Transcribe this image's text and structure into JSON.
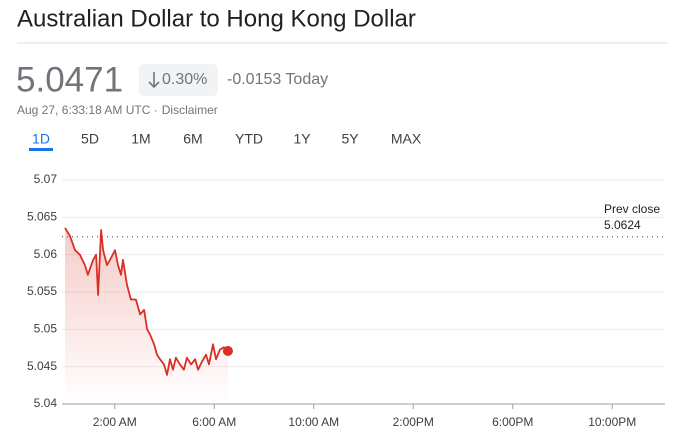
{
  "header": {
    "title": "Australian Dollar to Hong Kong Dollar",
    "price": "5.0471",
    "change_percent": "0.30%",
    "change": "-0.0153 Today",
    "timestamp": "Aug 27, 6:33:18 AM UTC ·",
    "disclaimer": "Disclaimer"
  },
  "tabs": [
    "1D",
    "5D",
    "1M",
    "6M",
    "YTD",
    "1Y",
    "5Y",
    "MAX"
  ],
  "chart_data": {
    "type": "line",
    "color": "#d93025",
    "x": [
      0,
      0.2,
      0.4,
      0.6,
      0.8,
      0.92,
      1.13,
      1.25,
      1.33,
      1.45,
      1.53,
      1.69,
      1.81,
      2.01,
      2.13,
      2.25,
      2.33,
      2.49,
      2.65,
      2.85,
      3.02,
      3.18,
      3.3,
      3.42,
      3.58,
      3.7,
      3.82,
      3.98,
      4.1,
      4.22,
      4.34,
      4.46,
      4.62,
      4.78,
      4.9,
      5.07,
      5.23,
      5.35,
      5.51,
      5.67,
      5.79,
      5.95,
      6.07,
      6.23,
      6.39,
      6.47,
      6.55
    ],
    "values": [
      5.0636,
      5.0625,
      5.0606,
      5.06,
      5.0586,
      5.0573,
      5.0593,
      5.06,
      5.0546,
      5.0633,
      5.0606,
      5.0586,
      5.0593,
      5.0606,
      5.0586,
      5.0573,
      5.0593,
      5.056,
      5.054,
      5.054,
      5.052,
      5.0526,
      5.05,
      5.0493,
      5.048,
      5.0466,
      5.046,
      5.0453,
      5.0439,
      5.046,
      5.0446,
      5.0462,
      5.0453,
      5.0446,
      5.0462,
      5.0453,
      5.046,
      5.0446,
      5.0457,
      5.0466,
      5.0453,
      5.048,
      5.046,
      5.0473,
      5.0476,
      5.047,
      5.0471
    ],
    "prev_close": {
      "label": "Prev close",
      "value": 5.0624
    },
    "xlim": [
      0,
      24
    ],
    "xticks": [
      {
        "value": 2,
        "label": "2:00 AM"
      },
      {
        "value": 6,
        "label": "6:00 AM"
      },
      {
        "value": 10,
        "label": "10:00 AM"
      },
      {
        "value": 14,
        "label": "2:00PM"
      },
      {
        "value": 18,
        "label": "6:00PM"
      },
      {
        "value": 22,
        "label": "10:00PM"
      }
    ],
    "ylim": [
      5.04,
      5.07
    ],
    "yticks": [
      5.04,
      5.045,
      5.05,
      5.055,
      5.06,
      5.065,
      5.07
    ],
    "grid": true
  }
}
